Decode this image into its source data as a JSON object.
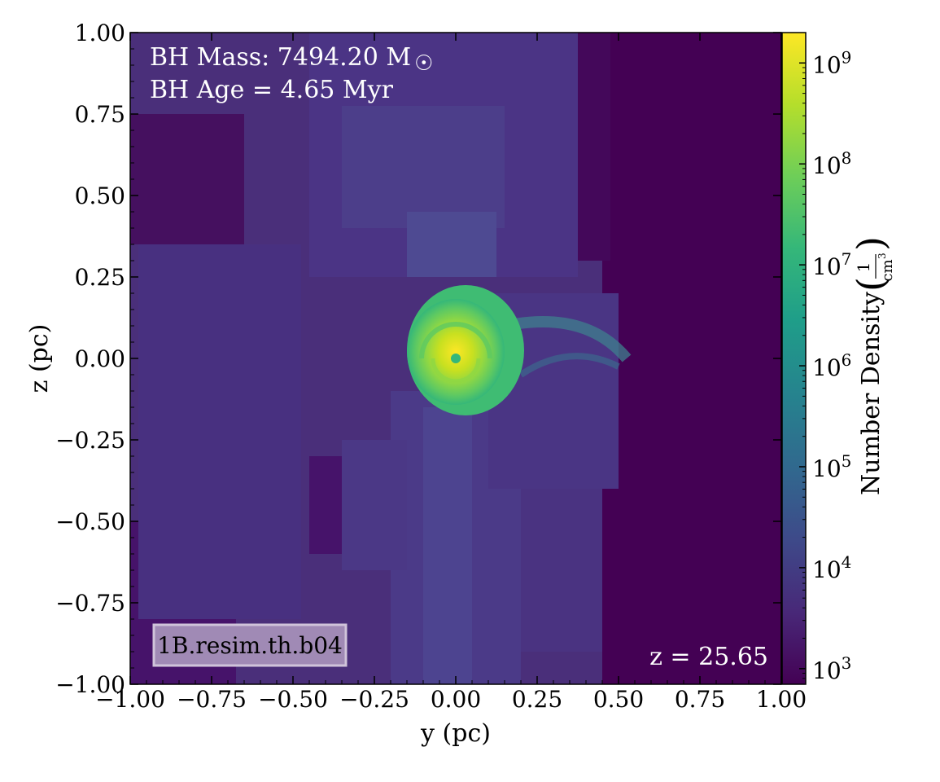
{
  "chart_data": {
    "type": "heatmap",
    "title": "",
    "xlabel": "y  (pc)",
    "ylabel": "z  (pc)",
    "xlim": [
      -1.0,
      1.0
    ],
    "ylim": [
      -1.0,
      1.0
    ],
    "x_ticks": [
      "−1.00",
      "−0.75",
      "−0.50",
      "−0.25",
      "0.00",
      "0.25",
      "0.50",
      "0.75",
      "1.00"
    ],
    "y_ticks": [
      "1.00",
      "0.75",
      "0.50",
      "0.25",
      "0.00",
      "−0.25",
      "−0.50",
      "−0.75",
      "−1.00"
    ],
    "x_tick_values": [
      -1.0,
      -0.75,
      -0.5,
      -0.25,
      0.0,
      0.25,
      0.5,
      0.75,
      1.0
    ],
    "y_tick_values": [
      1.0,
      0.75,
      0.5,
      0.25,
      0.0,
      -0.25,
      -0.5,
      -0.75,
      -1.0
    ],
    "colorbar": {
      "label": "Number Density",
      "unit_numerator": "1",
      "unit_denominator": "cm",
      "unit_exponent": "3",
      "scale": "log",
      "range": [
        700,
        2000000000
      ],
      "tick_base": "10",
      "tick_exponents": [
        "9",
        "8",
        "7",
        "6",
        "5",
        "4",
        "3"
      ],
      "colormap": "viridis",
      "colors": [
        "#440154",
        "#482878",
        "#3e4989",
        "#31688e",
        "#26828e",
        "#1f9e89",
        "#35b779",
        "#6ece58",
        "#b5de2b",
        "#fde725"
      ]
    },
    "features": [
      {
        "name": "dense rotating disk",
        "center": [
          0.0,
          0.0
        ],
        "peak_log_density": 9.0
      },
      {
        "name": "spiral arm",
        "extends_to": [
          0.52,
          -0.02
        ]
      }
    ]
  },
  "annotations": {
    "bh_mass_prefix": "BH Mass: 7494.20 M",
    "bh_mass_symbol": "☉",
    "bh_age": "BH Age = 4.65 Myr",
    "redshift": "z = 25.65",
    "simulation_name": "1B.resim.th.b04"
  }
}
